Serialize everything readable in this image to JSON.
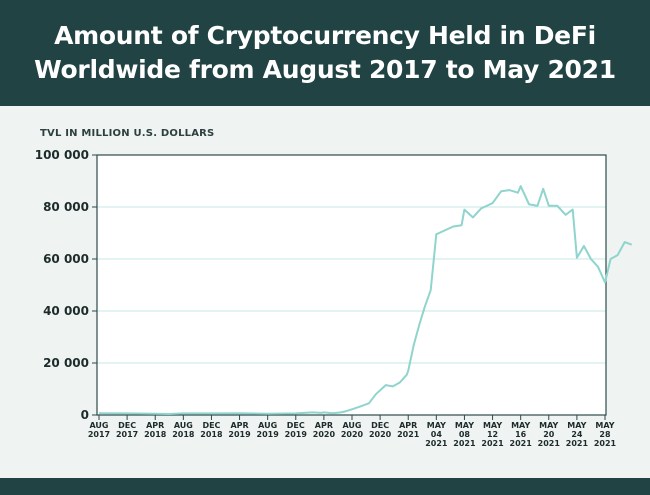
{
  "header": {
    "title_line1": "Amount of Cryptocurrency Held in DeFi",
    "title_line2": "Worldwide from August 2017 to May 2021"
  },
  "colors": {
    "header_bg": "#214343",
    "page_bg": "#eff3f2",
    "plot_bg": "#ffffff",
    "line": "#8fd4cd",
    "grid": "#c3e8e3",
    "axis": "#2d4a4a"
  },
  "chart_data": {
    "type": "line",
    "title": "Amount of Cryptocurrency Held in DeFi Worldwide from August 2017 to May 2021",
    "xlabel": "",
    "ylabel": "TVL IN MILLION U.S. DOLLARS",
    "ylim": [
      0,
      100000
    ],
    "yticks": [
      0,
      20000,
      40000,
      60000,
      80000,
      100000
    ],
    "ytick_labels": [
      "0",
      "20 000",
      "40 000",
      "60 000",
      "80 000",
      "100 000"
    ],
    "grid": true,
    "categories": [
      [
        "AUG",
        "2017"
      ],
      [
        "DEC",
        "2017"
      ],
      [
        "APR",
        "2018"
      ],
      [
        "AUG",
        "2018"
      ],
      [
        "DEC",
        "2018"
      ],
      [
        "APR",
        "2019"
      ],
      [
        "AUG",
        "2019"
      ],
      [
        "DEC",
        "2019"
      ],
      [
        "APR",
        "2020"
      ],
      [
        "AUG",
        "2020"
      ],
      [
        "DEC",
        "2020"
      ],
      [
        "APR",
        "2021"
      ],
      [
        "MAY",
        "04",
        "2021"
      ],
      [
        "MAY",
        "08",
        "2021"
      ],
      [
        "MAY",
        "12",
        "2021"
      ],
      [
        "MAY",
        "16",
        "2021"
      ],
      [
        "MAY",
        "20",
        "2021"
      ],
      [
        "MAY",
        "24",
        "2021"
      ],
      [
        "MAY",
        "28",
        "2021"
      ]
    ],
    "series": [
      {
        "name": "TVL",
        "values": [
          [
            0,
            700
          ],
          [
            1,
            600
          ],
          [
            2,
            500
          ],
          [
            2.5,
            400
          ],
          [
            3,
            600
          ],
          [
            4,
            600
          ],
          [
            5,
            700
          ],
          [
            6,
            500
          ],
          [
            7,
            600
          ],
          [
            7.3,
            800
          ],
          [
            7.6,
            1000
          ],
          [
            7.9,
            800
          ],
          [
            8,
            1000
          ],
          [
            8.3,
            700
          ],
          [
            8.6,
            1000
          ],
          [
            8.8,
            1500
          ],
          [
            9,
            2200
          ],
          [
            9.3,
            3300
          ],
          [
            9.6,
            4500
          ],
          [
            9.85,
            8000
          ],
          [
            10,
            9500
          ],
          [
            10.2,
            11500
          ],
          [
            10.45,
            11000
          ],
          [
            10.7,
            12500
          ],
          [
            10.95,
            15500
          ],
          [
            11,
            17000
          ],
          [
            11.2,
            27000
          ],
          [
            11.4,
            35000
          ],
          [
            11.6,
            42000
          ],
          [
            11.8,
            48000
          ],
          [
            12,
            69500
          ],
          [
            12.3,
            71000
          ],
          [
            12.6,
            72500
          ],
          [
            12.9,
            73000
          ],
          [
            13,
            79000
          ],
          [
            13.3,
            76000
          ],
          [
            13.6,
            79500
          ],
          [
            14,
            81500
          ],
          [
            14.3,
            86000
          ],
          [
            14.6,
            86500
          ],
          [
            14.9,
            85500
          ],
          [
            15,
            88000
          ],
          [
            15.3,
            81000
          ],
          [
            15.6,
            80500
          ],
          [
            15.8,
            87000
          ],
          [
            16,
            80500
          ],
          [
            16.3,
            80500
          ],
          [
            16.6,
            77000
          ],
          [
            16.85,
            79000
          ],
          [
            17,
            60500
          ],
          [
            17.25,
            65000
          ],
          [
            17.5,
            60000
          ],
          [
            17.75,
            57000
          ],
          [
            18,
            51000
          ],
          [
            18.2,
            60000
          ],
          [
            18.45,
            61500
          ],
          [
            18.7,
            66500
          ],
          [
            18.95,
            65500
          ]
        ]
      }
    ]
  }
}
